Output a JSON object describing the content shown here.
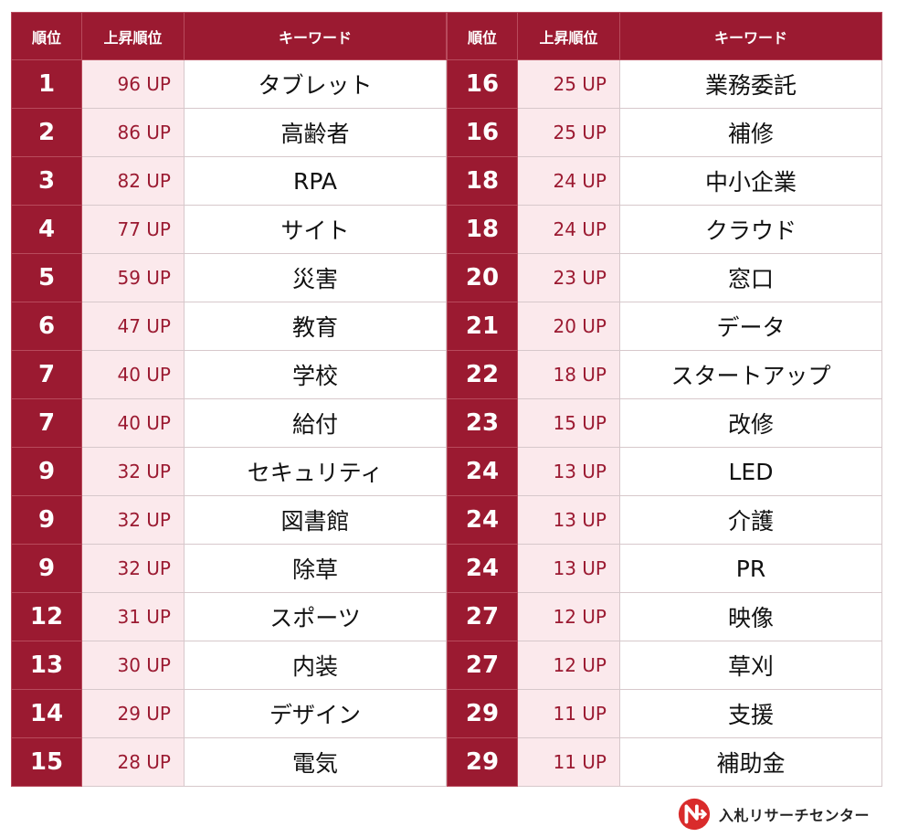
{
  "headers": {
    "rank": "順位",
    "rise": "上昇順位",
    "keyword": "キーワード"
  },
  "left_rows": [
    {
      "rank": "1",
      "rise": "96 UP",
      "keyword": "タブレット"
    },
    {
      "rank": "2",
      "rise": "86 UP",
      "keyword": "高齢者"
    },
    {
      "rank": "3",
      "rise": "82 UP",
      "keyword": "RPA"
    },
    {
      "rank": "4",
      "rise": "77 UP",
      "keyword": "サイト"
    },
    {
      "rank": "5",
      "rise": "59 UP",
      "keyword": "災害"
    },
    {
      "rank": "6",
      "rise": "47 UP",
      "keyword": "教育"
    },
    {
      "rank": "7",
      "rise": "40 UP",
      "keyword": "学校"
    },
    {
      "rank": "7",
      "rise": "40 UP",
      "keyword": "給付"
    },
    {
      "rank": "9",
      "rise": "32 UP",
      "keyword": "セキュリティ"
    },
    {
      "rank": "9",
      "rise": "32 UP",
      "keyword": "図書館"
    },
    {
      "rank": "9",
      "rise": "32 UP",
      "keyword": "除草"
    },
    {
      "rank": "12",
      "rise": "31 UP",
      "keyword": "スポーツ"
    },
    {
      "rank": "13",
      "rise": "30 UP",
      "keyword": "内装"
    },
    {
      "rank": "14",
      "rise": "29 UP",
      "keyword": "デザイン"
    },
    {
      "rank": "15",
      "rise": "28 UP",
      "keyword": "電気"
    }
  ],
  "right_rows": [
    {
      "rank": "16",
      "rise": "25 UP",
      "keyword": "業務委託"
    },
    {
      "rank": "16",
      "rise": "25 UP",
      "keyword": "補修"
    },
    {
      "rank": "18",
      "rise": "24 UP",
      "keyword": "中小企業"
    },
    {
      "rank": "18",
      "rise": "24 UP",
      "keyword": "クラウド"
    },
    {
      "rank": "20",
      "rise": "23 UP",
      "keyword": "窓口"
    },
    {
      "rank": "21",
      "rise": "20 UP",
      "keyword": "データ"
    },
    {
      "rank": "22",
      "rise": "18 UP",
      "keyword": "スタートアップ"
    },
    {
      "rank": "23",
      "rise": "15 UP",
      "keyword": "改修"
    },
    {
      "rank": "24",
      "rise": "13 UP",
      "keyword": "LED"
    },
    {
      "rank": "24",
      "rise": "13 UP",
      "keyword": "介護"
    },
    {
      "rank": "24",
      "rise": "13 UP",
      "keyword": "PR"
    },
    {
      "rank": "27",
      "rise": "12 UP",
      "keyword": "映像"
    },
    {
      "rank": "27",
      "rise": "12 UP",
      "keyword": "草刈"
    },
    {
      "rank": "29",
      "rise": "11 UP",
      "keyword": "支援"
    },
    {
      "rank": "29",
      "rise": "11 UP",
      "keyword": "補助金"
    }
  ],
  "footer": {
    "logo_text": "入札リサーチセンター",
    "logo_icon": "nyusatsu-research-center-logo-icon",
    "brand_color": "#9b1a31",
    "logo_accent": "#d92b2b"
  }
}
